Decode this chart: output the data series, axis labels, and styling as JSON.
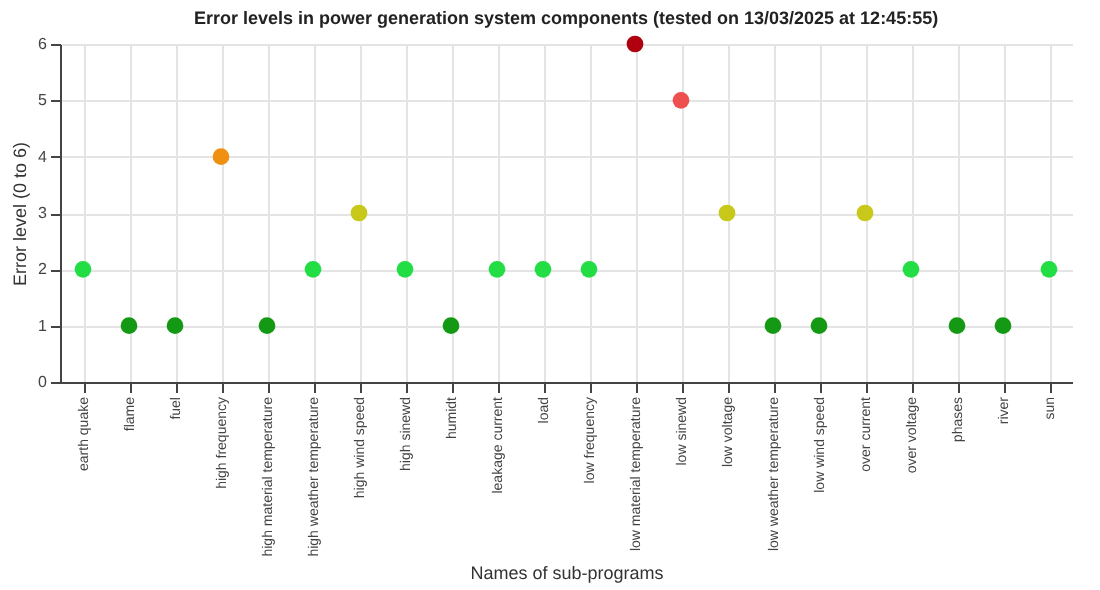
{
  "chart_data": {
    "type": "scatter",
    "title": "Error levels in power generation system components (tested on 13/03/2025 at 12:45:55)",
    "xlabel": "Names of sub-programs",
    "ylabel": "Error level (0 to 6)",
    "categories": [
      "earth quake",
      "flame",
      "fuel",
      "high frequency",
      "high material temperature",
      "high weather temperature",
      "high wind speed",
      "high sinewd",
      "humidt",
      "leakage current",
      "load",
      "low frequency",
      "low material temperature",
      "low sinewd",
      "low voltage",
      "low weather temperature",
      "low wind speed",
      "over current",
      "over voltage",
      "phases",
      "river",
      "sun"
    ],
    "values": [
      2,
      1,
      1,
      4,
      1,
      2,
      3,
      2,
      1,
      2,
      2,
      2,
      6,
      5,
      3,
      1,
      1,
      3,
      2,
      1,
      1,
      2
    ],
    "colors": [
      "#22dd44",
      "#149914",
      "#149914",
      "#f09010",
      "#149914",
      "#22dd44",
      "#c8c81a",
      "#22dd44",
      "#149914",
      "#22dd44",
      "#22dd44",
      "#22dd44",
      "#b00010",
      "#ee5050",
      "#c8c81a",
      "#149914",
      "#149914",
      "#c8c81a",
      "#22dd44",
      "#149914",
      "#149914",
      "#22dd44"
    ],
    "ylim": [
      0,
      6
    ],
    "yticks": [
      0,
      1,
      2,
      3,
      4,
      5,
      6
    ],
    "grid": true,
    "marker": "circle"
  }
}
